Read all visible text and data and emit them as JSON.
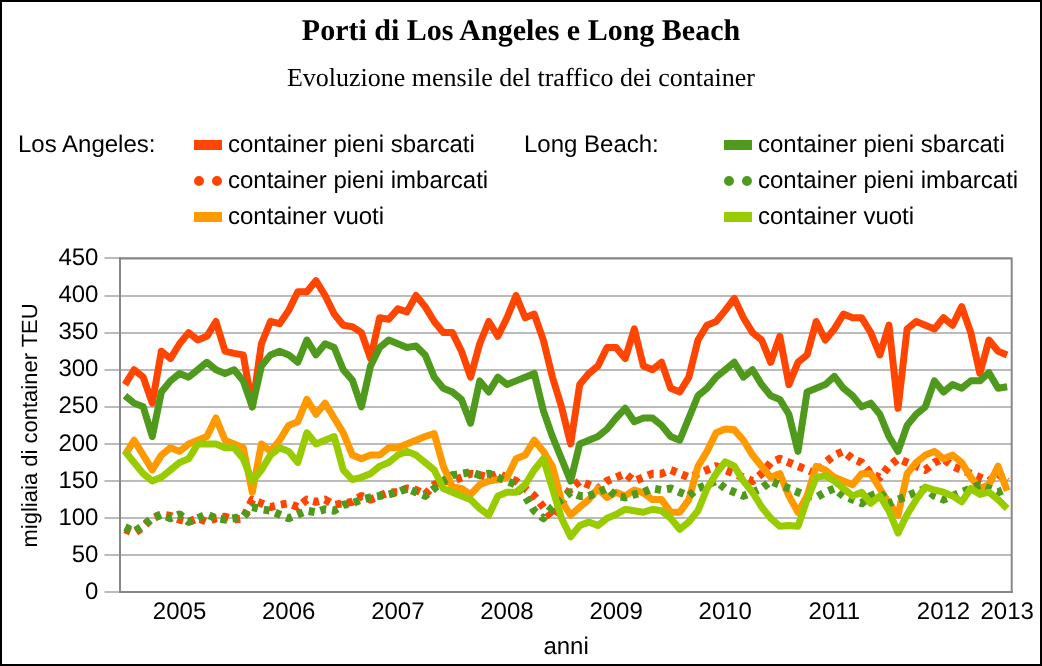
{
  "chart_data": {
    "type": "line",
    "title": "Porti di Los Angeles e Long Beach",
    "subtitle": "Evoluzione mensile del traffico dei container",
    "xlabel": "anni",
    "ylabel": "migliaia di container TEU",
    "categories": [
      null,
      null,
      null,
      null,
      null,
      null,
      "2005",
      null,
      null,
      null,
      null,
      null,
      null,
      null,
      null,
      null,
      null,
      null,
      "2006",
      null,
      null,
      null,
      null,
      null,
      null,
      null,
      null,
      null,
      null,
      null,
      "2007",
      null,
      null,
      null,
      null,
      null,
      null,
      null,
      null,
      null,
      null,
      null,
      "2008",
      null,
      null,
      null,
      null,
      null,
      null,
      null,
      null,
      null,
      null,
      null,
      "2009",
      null,
      null,
      null,
      null,
      null,
      null,
      null,
      null,
      null,
      null,
      null,
      "2010",
      null,
      null,
      null,
      null,
      null,
      null,
      null,
      null,
      null,
      null,
      null,
      "2011",
      null,
      null,
      null,
      null,
      null,
      null,
      null,
      null,
      null,
      null,
      null,
      "2012",
      null,
      null,
      null,
      null,
      null,
      null,
      "2013"
    ],
    "ylim": [
      0,
      450
    ],
    "yticks": [
      0,
      50,
      100,
      150,
      200,
      250,
      300,
      350,
      400,
      450
    ],
    "grid": "y",
    "legend": "top",
    "marker": "none",
    "annotations": [
      "Los Angeles:",
      "Long Beach:"
    ],
    "series": [
      {
        "name": "container pieni sbarcati",
        "color": "#ff4500",
        "line_style": "solid",
        "values": [
          280,
          300,
          290,
          255,
          325,
          315,
          335,
          350,
          340,
          345,
          365,
          325,
          322,
          320,
          250,
          335,
          365,
          362,
          380,
          405,
          405,
          420,
          400,
          375,
          360,
          358,
          350,
          315,
          370,
          368,
          382,
          378,
          400,
          385,
          365,
          350,
          350,
          325,
          290,
          335,
          365,
          345,
          370,
          400,
          370,
          375,
          340,
          290,
          250,
          200,
          280,
          295,
          305,
          330,
          330,
          315,
          355,
          305,
          300,
          310,
          275,
          270,
          290,
          340,
          360,
          365,
          380,
          396,
          370,
          350,
          340,
          310,
          345,
          280,
          310,
          320,
          365,
          340,
          355,
          375,
          370,
          370,
          350,
          320,
          360,
          248,
          355,
          365,
          360,
          355,
          370,
          360,
          385,
          350,
          295,
          340,
          325,
          320
        ]
      },
      {
        "name": "container pieni imbarcati",
        "color": "#ff4500",
        "line_style": "dotted",
        "values": [
          85,
          80,
          88,
          100,
          105,
          103,
          98,
          95,
          100,
          95,
          100,
          102,
          98,
          100,
          125,
          120,
          115,
          118,
          120,
          115,
          125,
          122,
          125,
          118,
          120,
          122,
          130,
          125,
          130,
          135,
          135,
          140,
          138,
          132,
          145,
          150,
          150,
          155,
          160,
          158,
          155,
          160,
          155,
          150,
          140,
          130,
          115,
          100,
          120,
          140,
          150,
          145,
          140,
          150,
          155,
          160,
          150,
          155,
          160,
          160,
          165,
          160,
          155,
          160,
          165,
          170,
          165,
          160,
          155,
          150,
          160,
          175,
          180,
          175,
          170,
          165,
          160,
          175,
          185,
          190,
          180,
          175,
          160,
          155,
          170,
          180,
          175,
          170,
          165,
          175,
          180,
          170,
          165,
          160,
          155,
          150,
          160,
          150
        ]
      },
      {
        "name": "container vuoti",
        "color": "#ff9900",
        "line_style": "solid",
        "values": [
          185,
          205,
          185,
          165,
          185,
          195,
          190,
          200,
          205,
          210,
          235,
          205,
          200,
          195,
          135,
          200,
          190,
          205,
          225,
          230,
          260,
          240,
          255,
          235,
          215,
          185,
          180,
          185,
          185,
          195,
          195,
          200,
          205,
          210,
          214,
          170,
          142,
          140,
          132,
          145,
          150,
          152,
          155,
          180,
          185,
          205,
          190,
          170,
          123,
          104,
          115,
          125,
          140,
          128,
          135,
          130,
          138,
          134,
          125,
          125,
          108,
          108,
          125,
          170,
          190,
          215,
          220,
          219,
          205,
          185,
          170,
          155,
          160,
          130,
          108,
          130,
          170,
          165,
          155,
          150,
          145,
          160,
          160,
          140,
          120,
          104,
          160,
          175,
          185,
          190,
          180,
          185,
          175,
          155,
          140,
          145,
          170,
          137
        ]
      },
      {
        "name": "container pieni sbarcati",
        "color": "#4f9a1d",
        "line_style": "solid",
        "values": [
          265,
          255,
          250,
          210,
          270,
          285,
          295,
          290,
          300,
          310,
          300,
          295,
          300,
          285,
          250,
          305,
          320,
          325,
          320,
          310,
          340,
          320,
          335,
          330,
          300,
          286,
          250,
          305,
          330,
          340,
          335,
          330,
          332,
          320,
          290,
          275,
          270,
          260,
          228,
          285,
          270,
          290,
          280,
          285,
          290,
          295,
          245,
          210,
          180,
          150,
          200,
          205,
          210,
          220,
          235,
          248,
          230,
          235,
          235,
          225,
          210,
          205,
          235,
          265,
          275,
          290,
          300,
          310,
          290,
          300,
          280,
          265,
          260,
          240,
          190,
          270,
          275,
          280,
          291,
          275,
          265,
          250,
          255,
          240,
          210,
          190,
          225,
          240,
          250,
          285,
          270,
          280,
          275,
          285,
          285,
          296,
          275,
          277
        ]
      },
      {
        "name": "container pieni imbarcati",
        "color": "#4f9a1d",
        "line_style": "dotted",
        "values": [
          88,
          82,
          90,
          100,
          105,
          100,
          105,
          95,
          100,
          105,
          100,
          98,
          100,
          102,
          115,
          112,
          110,
          105,
          100,
          105,
          110,
          108,
          112,
          110,
          118,
          120,
          125,
          128,
          130,
          132,
          135,
          140,
          135,
          130,
          140,
          150,
          158,
          160,
          162,
          158,
          160,
          155,
          150,
          145,
          130,
          110,
          100,
          115,
          125,
          135,
          130,
          130,
          135,
          140,
          130,
          128,
          132,
          135,
          140,
          138,
          140,
          135,
          130,
          140,
          145,
          150,
          140,
          135,
          130,
          135,
          140,
          150,
          145,
          140,
          135,
          130,
          128,
          135,
          140,
          130,
          125,
          120,
          130,
          135,
          120,
          125,
          130,
          135,
          140,
          130,
          125,
          130,
          135,
          140,
          145,
          140,
          135,
          140
        ]
      },
      {
        "name": "container vuoti",
        "color": "#99cc00",
        "line_style": "solid",
        "values": [
          190,
          175,
          160,
          150,
          155,
          165,
          175,
          180,
          200,
          200,
          200,
          195,
          195,
          180,
          150,
          165,
          185,
          195,
          190,
          175,
          215,
          200,
          205,
          210,
          165,
          152,
          155,
          160,
          170,
          175,
          185,
          190,
          185,
          175,
          165,
          140,
          135,
          130,
          125,
          113,
          104,
          130,
          135,
          135,
          145,
          165,
          180,
          140,
          100,
          75,
          90,
          95,
          90,
          100,
          105,
          112,
          110,
          108,
          112,
          110,
          100,
          85,
          95,
          110,
          140,
          160,
          176,
          170,
          150,
          135,
          115,
          100,
          89,
          90,
          89,
          125,
          155,
          157,
          150,
          140,
          130,
          135,
          120,
          130,
          110,
          80,
          105,
          125,
          142,
          138,
          135,
          130,
          122,
          140,
          132,
          135,
          125,
          113
        ]
      }
    ]
  }
}
